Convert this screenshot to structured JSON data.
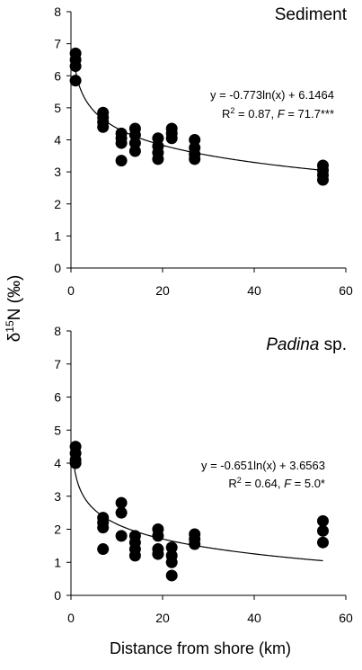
{
  "figure": {
    "ylabel_prefix": "δ",
    "ylabel_sup": "15",
    "ylabel_suffix": "N (‰)",
    "xlabel": "Distance from shore (km)"
  },
  "chart_data": [
    {
      "type": "scatter",
      "panel_label": "Sediment",
      "panel_label_italic_part": "",
      "equation": "y = -0.773ln(x) + 6.1464",
      "stats_r": "R",
      "stats_sup": "2",
      "stats_mid": " = 0.87, ",
      "stats_f": "F",
      "stats_tail": " = 71.7***",
      "xlim": [
        0,
        60
      ],
      "ylim": [
        0,
        8
      ],
      "xticks": [
        "0",
        "20",
        "40",
        "60"
      ],
      "yticks": [
        "0",
        "1",
        "2",
        "3",
        "4",
        "5",
        "6",
        "7",
        "8"
      ],
      "fit": {
        "model": "log",
        "a": -0.773,
        "b": 6.1464,
        "x_range": [
          0.5,
          55
        ]
      },
      "points": [
        {
          "x": 1,
          "y": 6.7
        },
        {
          "x": 1,
          "y": 6.5
        },
        {
          "x": 1,
          "y": 6.3
        },
        {
          "x": 1,
          "y": 5.85
        },
        {
          "x": 7,
          "y": 4.85
        },
        {
          "x": 7,
          "y": 4.7
        },
        {
          "x": 7,
          "y": 4.55
        },
        {
          "x": 7,
          "y": 4.4
        },
        {
          "x": 11,
          "y": 4.2
        },
        {
          "x": 11,
          "y": 4.05
        },
        {
          "x": 11,
          "y": 3.9
        },
        {
          "x": 11,
          "y": 3.35
        },
        {
          "x": 14,
          "y": 4.35
        },
        {
          "x": 14,
          "y": 4.15
        },
        {
          "x": 14,
          "y": 3.9
        },
        {
          "x": 14,
          "y": 3.65
        },
        {
          "x": 19,
          "y": 4.05
        },
        {
          "x": 19,
          "y": 3.8
        },
        {
          "x": 19,
          "y": 3.6
        },
        {
          "x": 19,
          "y": 3.4
        },
        {
          "x": 22,
          "y": 4.35
        },
        {
          "x": 22,
          "y": 4.2
        },
        {
          "x": 22,
          "y": 4.05
        },
        {
          "x": 27,
          "y": 4.0
        },
        {
          "x": 27,
          "y": 3.75
        },
        {
          "x": 27,
          "y": 3.55
        },
        {
          "x": 27,
          "y": 3.4
        },
        {
          "x": 55,
          "y": 3.2
        },
        {
          "x": 55,
          "y": 3.05
        },
        {
          "x": 55,
          "y": 2.9
        },
        {
          "x": 55,
          "y": 2.75
        }
      ]
    },
    {
      "type": "scatter",
      "panel_label": " sp.",
      "panel_label_italic_part": "Padina",
      "equation": "y = -0.651ln(x) + 3.6563",
      "stats_r": "R",
      "stats_sup": "2",
      "stats_mid": " = 0.64, ",
      "stats_f": "F",
      "stats_tail": " = 5.0*",
      "xlim": [
        0,
        60
      ],
      "ylim": [
        0,
        8
      ],
      "xticks": [
        "0",
        "20",
        "40",
        "60"
      ],
      "yticks": [
        "0",
        "1",
        "2",
        "3",
        "4",
        "5",
        "6",
        "7",
        "8"
      ],
      "fit": {
        "model": "log",
        "a": -0.651,
        "b": 3.6563,
        "x_range": [
          0.5,
          55
        ]
      },
      "points": [
        {
          "x": 1,
          "y": 4.5
        },
        {
          "x": 1,
          "y": 4.3
        },
        {
          "x": 1,
          "y": 4.1
        },
        {
          "x": 1,
          "y": 4.0
        },
        {
          "x": 7,
          "y": 2.35
        },
        {
          "x": 7,
          "y": 2.2
        },
        {
          "x": 7,
          "y": 2.05
        },
        {
          "x": 7,
          "y": 1.4
        },
        {
          "x": 11,
          "y": 2.8
        },
        {
          "x": 11,
          "y": 2.5
        },
        {
          "x": 11,
          "y": 1.8
        },
        {
          "x": 14,
          "y": 1.8
        },
        {
          "x": 14,
          "y": 1.6
        },
        {
          "x": 14,
          "y": 1.4
        },
        {
          "x": 14,
          "y": 1.2
        },
        {
          "x": 19,
          "y": 2.0
        },
        {
          "x": 19,
          "y": 1.8
        },
        {
          "x": 19,
          "y": 1.4
        },
        {
          "x": 19,
          "y": 1.25
        },
        {
          "x": 22,
          "y": 1.45
        },
        {
          "x": 22,
          "y": 1.2
        },
        {
          "x": 22,
          "y": 1.0
        },
        {
          "x": 22,
          "y": 0.6
        },
        {
          "x": 27,
          "y": 1.85
        },
        {
          "x": 27,
          "y": 1.7
        },
        {
          "x": 27,
          "y": 1.55
        },
        {
          "x": 55,
          "y": 2.25
        },
        {
          "x": 55,
          "y": 1.95
        },
        {
          "x": 55,
          "y": 1.6
        }
      ]
    }
  ]
}
